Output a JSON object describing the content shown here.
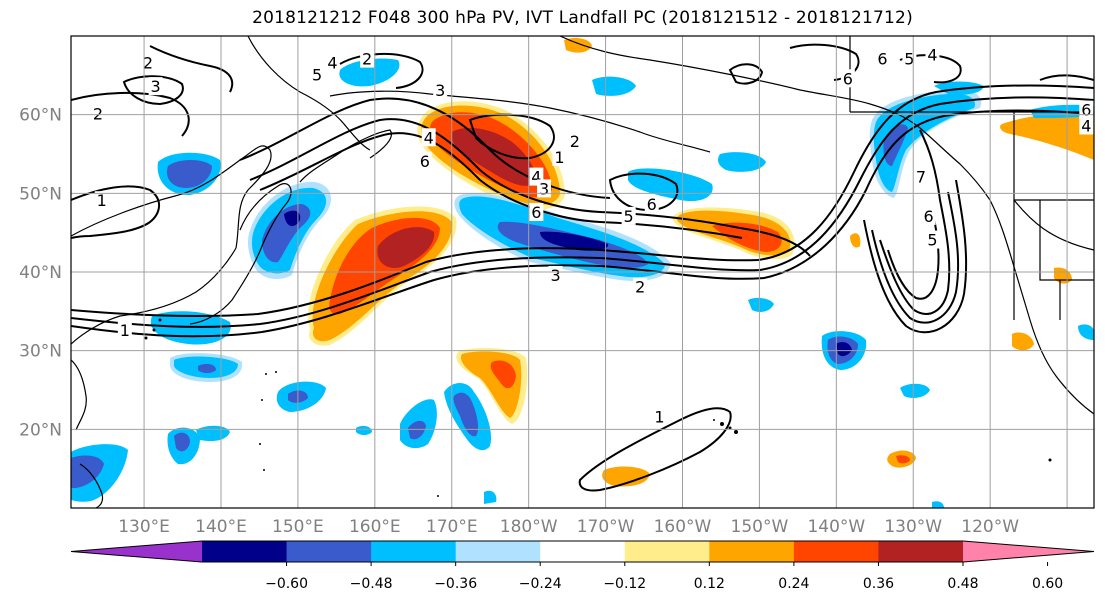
{
  "title": "2018121212 F048 300 hPa PV, IVT Landfall PC (2018121512 - 2018121712)",
  "map": {
    "lon_ticks": [
      "130°E",
      "140°E",
      "150°E",
      "160°E",
      "170°E",
      "180°W",
      "170°W",
      "160°W",
      "150°W",
      "140°W",
      "130°W",
      "120°W"
    ],
    "lat_ticks": [
      "60°N",
      "50°N",
      "40°N",
      "30°N",
      "20°N"
    ],
    "grid": true,
    "contour_labels": [
      {
        "text": "2",
        "lon": 130.5,
        "lat": 66.5
      },
      {
        "text": "3",
        "lon": 131.5,
        "lat": 63.5
      },
      {
        "text": "2",
        "lon": 124,
        "lat": 60
      },
      {
        "text": "1",
        "lon": 124.5,
        "lat": 49
      },
      {
        "text": "1",
        "lon": 127.5,
        "lat": 32.5
      },
      {
        "text": "5",
        "lon": 152.5,
        "lat": 65
      },
      {
        "text": "4",
        "lon": 154.5,
        "lat": 66.5
      },
      {
        "text": "2",
        "lon": 159,
        "lat": 67
      },
      {
        "text": "3",
        "lon": 168.5,
        "lat": 63
      },
      {
        "text": "4",
        "lon": 167,
        "lat": 57
      },
      {
        "text": "6",
        "lon": 166.5,
        "lat": 54
      },
      {
        "text": "1",
        "lon": 184,
        "lat": 54.5
      },
      {
        "text": "2",
        "lon": 186,
        "lat": 56.5
      },
      {
        "text": "4",
        "lon": 181,
        "lat": 52
      },
      {
        "text": "3",
        "lon": 182,
        "lat": 50.5
      },
      {
        "text": "6",
        "lon": 181,
        "lat": 47.5
      },
      {
        "text": "6",
        "lon": 196,
        "lat": 48.5
      },
      {
        "text": "5",
        "lon": 193,
        "lat": 47
      },
      {
        "text": "3",
        "lon": 183.5,
        "lat": 39.5
      },
      {
        "text": "2",
        "lon": 194.5,
        "lat": 38
      },
      {
        "text": "6",
        "lon": 226,
        "lat": 67
      },
      {
        "text": "5",
        "lon": 229.5,
        "lat": 67
      },
      {
        "text": "4",
        "lon": 232.5,
        "lat": 67.5
      },
      {
        "text": "6",
        "lon": 221.5,
        "lat": 64.5
      },
      {
        "text": "7",
        "lon": 231,
        "lat": 52
      },
      {
        "text": "6",
        "lon": 232,
        "lat": 47
      },
      {
        "text": "5",
        "lon": 232.5,
        "lat": 44
      },
      {
        "text": "6",
        "lon": 252.5,
        "lat": 60.5
      },
      {
        "text": "4",
        "lon": 252.5,
        "lat": 58.5
      },
      {
        "text": "1",
        "lon": 197,
        "lat": 21.5
      }
    ]
  },
  "colorbar": {
    "labels": [
      "−0.60",
      "−0.48",
      "−0.36",
      "−0.24",
      "−0.12",
      "0.12",
      "0.24",
      "0.36",
      "0.48",
      "0.60"
    ],
    "colors": [
      "#9932cc",
      "#00008b",
      "#3a5bcc",
      "#00bfff",
      "#b0e2ff",
      "#ffffff",
      "#ffec8b",
      "#ffa500",
      "#ff4500",
      "#b22222",
      "#ff82ab"
    ]
  },
  "colors": {
    "neg_strong": "#00008b",
    "neg_mid": "#3a5bcc",
    "neg_light": "#00bfff",
    "neg_faint": "#b0e2ff",
    "pos_faint": "#ffec8b",
    "pos_light": "#ffa500",
    "pos_mid": "#ff4500",
    "pos_strong": "#b22222"
  }
}
